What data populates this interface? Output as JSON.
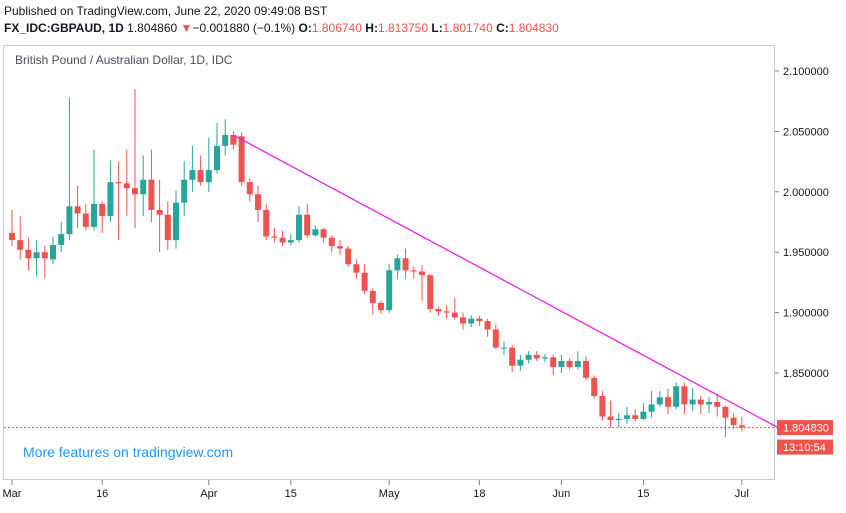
{
  "header": {
    "published": "Published on TradingView.com, June 22, 2020 09:49:08 BST",
    "symbol": "FX_IDC:GBPAUD, 1D",
    "last": "1.804860",
    "arrow": "▼",
    "change": "−0.001880 (−0.1%)",
    "o_label": "O:",
    "o": "1.806740",
    "h_label": "H:",
    "h": "1.813750",
    "l_label": "L:",
    "l": "1.801740",
    "c_label": "C:",
    "c": "1.804830"
  },
  "chart_title": "British Pound / Australian Dollar, 1D, IDC",
  "promo": "More features on tradingview.com",
  "price_label": "1.804830",
  "countdown_label": "13:10:54",
  "colors": {
    "up": "#26a69a",
    "down": "#ef5350",
    "trendline": "#e91ee9",
    "accent": "#2196f3"
  },
  "chart_data": {
    "type": "candlestick",
    "y_ticks": [
      "2.100000",
      "2.050000",
      "2.000000",
      "1.950000",
      "1.900000",
      "1.850000"
    ],
    "ylim": [
      1.78,
      2.12
    ],
    "x_ticks": [
      {
        "label": "Mar",
        "i": 0
      },
      {
        "label": "16",
        "i": 11
      },
      {
        "label": "Apr",
        "i": 24
      },
      {
        "label": "15",
        "i": 34
      },
      {
        "label": "May",
        "i": 46
      },
      {
        "label": "18",
        "i": 57
      },
      {
        "label": "Jun",
        "i": 67
      },
      {
        "label": "15",
        "i": 77
      },
      {
        "label": "Jul",
        "i": 89
      }
    ],
    "candles": [
      [
        1.966,
        1.96,
        1.985,
        1.955
      ],
      [
        1.96,
        1.952,
        1.98,
        1.944
      ],
      [
        1.952,
        1.945,
        1.962,
        1.935
      ],
      [
        1.945,
        1.95,
        1.96,
        1.93
      ],
      [
        1.95,
        1.945,
        1.955,
        1.928
      ],
      [
        1.944,
        1.956,
        1.963,
        1.94
      ],
      [
        1.956,
        1.965,
        1.975,
        1.95
      ],
      [
        1.965,
        1.988,
        2.078,
        1.96
      ],
      [
        1.988,
        1.982,
        2.005,
        1.97
      ],
      [
        1.982,
        1.971,
        1.99,
        1.968
      ],
      [
        1.971,
        1.99,
        2.035,
        1.968
      ],
      [
        1.99,
        1.98,
        1.992,
        1.966
      ],
      [
        1.98,
        2.008,
        2.026,
        1.975
      ],
      [
        2.008,
        2.007,
        2.025,
        1.96
      ],
      [
        2.007,
        2.003,
        2.035,
        1.98
      ],
      [
        2.003,
        1.998,
        2.085,
        1.97
      ],
      [
        1.998,
        2.01,
        2.03,
        1.98
      ],
      [
        2.01,
        1.985,
        2.035,
        1.975
      ],
      [
        1.985,
        1.981,
        2.01,
        1.95
      ],
      [
        1.981,
        1.96,
        1.992,
        1.952
      ],
      [
        1.96,
        1.991,
        2.001,
        1.953
      ],
      [
        1.991,
        2.01,
        2.025,
        1.98
      ],
      [
        2.01,
        2.018,
        2.038,
        2.0
      ],
      [
        2.018,
        2.008,
        2.03,
        2.005
      ],
      [
        2.008,
        2.018,
        2.045,
        2.0
      ],
      [
        2.018,
        2.038,
        2.057,
        2.015
      ],
      [
        2.038,
        2.047,
        2.06,
        2.03
      ],
      [
        2.047,
        2.039,
        2.05,
        2.035
      ],
      [
        2.046,
        2.008,
        2.049,
        2.005
      ],
      [
        2.008,
        1.998,
        2.011,
        1.992
      ],
      [
        1.998,
        1.985,
        2.005,
        1.975
      ],
      [
        1.985,
        1.963,
        1.99,
        1.96
      ],
      [
        1.963,
        1.962,
        1.97,
        1.958
      ],
      [
        1.962,
        1.958,
        1.968,
        1.955
      ],
      [
        1.958,
        1.96,
        1.965,
        1.956
      ],
      [
        1.96,
        1.981,
        1.988,
        1.958
      ],
      [
        1.981,
        1.964,
        1.99,
        1.962
      ],
      [
        1.964,
        1.969,
        1.972,
        1.963
      ],
      [
        1.969,
        1.962,
        1.97,
        1.958
      ],
      [
        1.962,
        1.955,
        1.964,
        1.95
      ],
      [
        1.955,
        1.953,
        1.96,
        1.948
      ],
      [
        1.953,
        1.94,
        1.955,
        1.938
      ],
      [
        1.94,
        1.933,
        1.944,
        1.928
      ],
      [
        1.933,
        1.918,
        1.94,
        1.915
      ],
      [
        1.918,
        1.908,
        1.92,
        1.899
      ],
      [
        1.908,
        1.902,
        1.91,
        1.899
      ],
      [
        1.902,
        1.935,
        1.94,
        1.9
      ],
      [
        1.935,
        1.945,
        1.948,
        1.928
      ],
      [
        1.945,
        1.935,
        1.953,
        1.928
      ],
      [
        1.935,
        1.934,
        1.938,
        1.928
      ],
      [
        1.934,
        1.931,
        1.939,
        1.91
      ],
      [
        1.931,
        1.903,
        1.932,
        1.9
      ],
      [
        1.903,
        1.901,
        1.905,
        1.897
      ],
      [
        1.901,
        1.9,
        1.906,
        1.895
      ],
      [
        1.9,
        1.896,
        1.912,
        1.894
      ],
      [
        1.896,
        1.891,
        1.9,
        1.886
      ],
      [
        1.891,
        1.895,
        1.898,
        1.888
      ],
      [
        1.895,
        1.893,
        1.897,
        1.889
      ],
      [
        1.893,
        1.886,
        1.895,
        1.88
      ],
      [
        1.886,
        1.871,
        1.89,
        1.87
      ],
      [
        1.871,
        1.871,
        1.876,
        1.865
      ],
      [
        1.871,
        1.856,
        1.873,
        1.851
      ],
      [
        1.856,
        1.861,
        1.865,
        1.852
      ],
      [
        1.861,
        1.865,
        1.868,
        1.858
      ],
      [
        1.865,
        1.862,
        1.868,
        1.86
      ],
      [
        1.862,
        1.863,
        1.866,
        1.859
      ],
      [
        1.863,
        1.855,
        1.865,
        1.848
      ],
      [
        1.855,
        1.86,
        1.865,
        1.85
      ],
      [
        1.86,
        1.855,
        1.862,
        1.853
      ],
      [
        1.855,
        1.86,
        1.868,
        1.853
      ],
      [
        1.86,
        1.846,
        1.864,
        1.844
      ],
      [
        1.846,
        1.831,
        1.848,
        1.829
      ],
      [
        1.831,
        1.814,
        1.835,
        1.811
      ],
      [
        1.814,
        1.811,
        1.827,
        1.805
      ],
      [
        1.811,
        1.812,
        1.817,
        1.805
      ],
      [
        1.812,
        1.815,
        1.822,
        1.808
      ],
      [
        1.815,
        1.812,
        1.82,
        1.81
      ],
      [
        1.812,
        1.818,
        1.825,
        1.811
      ],
      [
        1.818,
        1.824,
        1.835,
        1.813
      ],
      [
        1.824,
        1.83,
        1.835,
        1.822
      ],
      [
        1.83,
        1.822,
        1.837,
        1.816
      ],
      [
        1.822,
        1.839,
        1.842,
        1.82
      ],
      [
        1.839,
        1.824,
        1.842,
        1.816
      ],
      [
        1.824,
        1.828,
        1.838,
        1.819
      ],
      [
        1.828,
        1.824,
        1.831,
        1.816
      ],
      [
        1.824,
        1.826,
        1.83,
        1.817
      ],
      [
        1.826,
        1.822,
        1.833,
        1.814
      ],
      [
        1.822,
        1.813,
        1.823,
        1.797
      ],
      [
        1.813,
        1.807,
        1.817,
        1.804
      ],
      [
        1.8067,
        1.8048,
        1.8138,
        1.8017
      ]
    ],
    "trendline": [
      [
        27,
        2.047
      ],
      [
        95,
        1.799
      ]
    ],
    "current_price": 1.80483
  }
}
